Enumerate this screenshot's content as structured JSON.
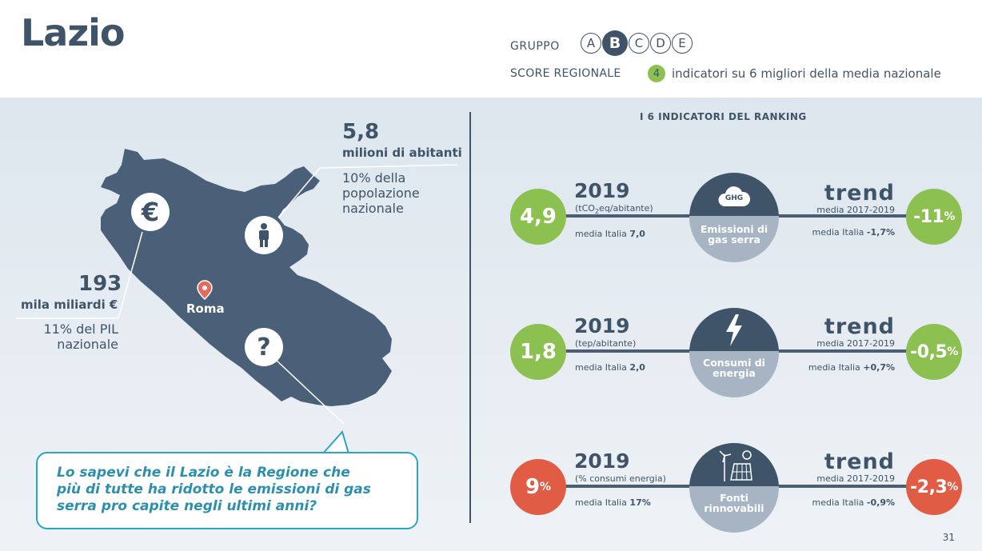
{
  "header": {
    "title": "Lazio",
    "gruppo_label": "GRUPPO",
    "gruppo_options": [
      "A",
      "B",
      "C",
      "D",
      "E"
    ],
    "gruppo_selected": "B",
    "score_label": "SCORE REGIONALE",
    "score_value": "4",
    "score_text": "indicatori su 6 migliori della media nazionale"
  },
  "map": {
    "population_value": "5,8",
    "population_unit": "milioni di abitanti",
    "population_desc": [
      "10% della",
      "popolazione",
      "nazionale"
    ],
    "gdp_value": "193",
    "gdp_unit": "mila miliardi €",
    "gdp_desc": [
      "11% del PIL",
      "nazionale"
    ],
    "capital": "Roma",
    "icons": {
      "euro": "€",
      "person": "person-icon",
      "question": "?"
    }
  },
  "callout": {
    "lines": [
      "Lo sapevi che il Lazio è la Regione che",
      "più di tutte ha ridotto le emissioni di gas",
      "serra pro capite negli ultimi anni?"
    ]
  },
  "indicators": {
    "title": "I 6 INDICATORI DEL RANKING",
    "rows": [
      {
        "value": "4,9",
        "value_pct": "",
        "value_color": "green",
        "year": "2019",
        "unit_pre": "(tCO",
        "unit_sub": "2",
        "unit_post": "eq/abitante)",
        "media_label": "media Italia",
        "media_value": "7,0",
        "center_badge": "GHG",
        "center_label": [
          "Emissioni di",
          "gas serra"
        ],
        "trend_label": "trend",
        "trend_period": "media 2017-2019",
        "trend_media_label": "media Italia",
        "trend_media_value": "-1,7%",
        "trend_value": "-11",
        "trend_pct": "%",
        "trend_color": "green"
      },
      {
        "value": "1,8",
        "value_pct": "",
        "value_color": "green",
        "year": "2019",
        "unit_pre": "(tep/abitante)",
        "unit_sub": "",
        "unit_post": "",
        "media_label": "media Italia",
        "media_value": "2,0",
        "center_badge": "",
        "center_label": [
          "Consumi di",
          "energia"
        ],
        "trend_label": "trend",
        "trend_period": "media 2017-2019",
        "trend_media_label": "media Italia",
        "trend_media_value": "+0,7%",
        "trend_value": "-0,5",
        "trend_pct": "%",
        "trend_color": "green"
      },
      {
        "value": "9",
        "value_pct": "%",
        "value_color": "red",
        "year": "2019",
        "unit_pre": "(% consumi energia)",
        "unit_sub": "",
        "unit_post": "",
        "media_label": "media Italia",
        "media_value": "17%",
        "center_badge": "",
        "center_label": [
          "Fonti",
          "rinnovabili"
        ],
        "trend_label": "trend",
        "trend_period": "media 2017-2019",
        "trend_media_label": "media Italia",
        "trend_media_value": "-0,9%",
        "trend_value": "-2,3",
        "trend_pct": "%",
        "trend_color": "red"
      }
    ]
  },
  "page_number": "31",
  "colors": {
    "navy": "#3f5468",
    "green": "#8cc152",
    "red": "#e05c45",
    "teal": "#2aa6c2"
  }
}
